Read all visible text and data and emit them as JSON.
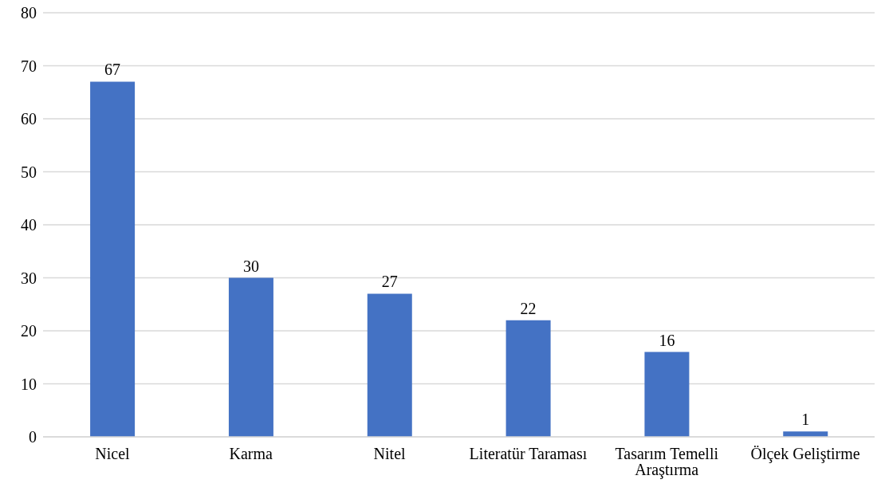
{
  "chart_data": {
    "type": "bar",
    "categories": [
      "Nicel",
      "Karma",
      "Nitel",
      "Literatür Taraması",
      "Tasarım Temelli Araştırma",
      "Ölçek Geliştirme"
    ],
    "values": [
      67,
      30,
      27,
      22,
      16,
      1
    ],
    "color": "#4472c4",
    "ylim": [
      0,
      80
    ],
    "yticks": [
      0,
      10,
      20,
      30,
      40,
      50,
      60,
      70,
      80
    ],
    "grid": "y",
    "data_labels": true
  }
}
